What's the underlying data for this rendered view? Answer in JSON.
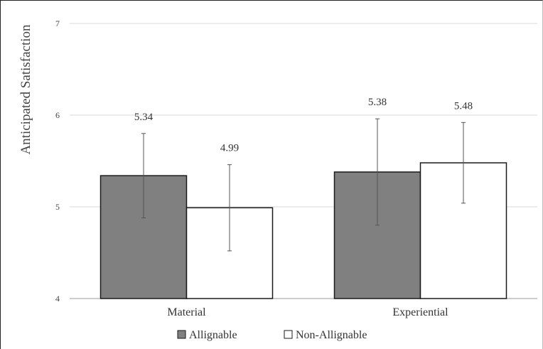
{
  "chart_data": {
    "type": "bar",
    "title": "",
    "ylabel": "Anticipated Satisfaction",
    "xlabel": "",
    "ylim": [
      4,
      7
    ],
    "yticks": [
      4,
      5,
      6,
      7
    ],
    "categories": [
      "Material",
      "Experiential"
    ],
    "series": [
      {
        "name": "Allignable",
        "color": "#808080",
        "values": [
          5.34,
          5.38
        ],
        "labels": [
          "5.34",
          "5.38"
        ],
        "error_low": [
          4.88,
          4.8
        ],
        "error_high": [
          5.8,
          5.96
        ]
      },
      {
        "name": "Non-Allignable",
        "color": "#ffffff",
        "values": [
          4.99,
          5.48
        ],
        "labels": [
          "4.99",
          "5.48"
        ],
        "error_low": [
          4.52,
          5.04
        ],
        "error_high": [
          5.46,
          5.92
        ]
      }
    ],
    "grid": true,
    "legend_position": "bottom"
  }
}
